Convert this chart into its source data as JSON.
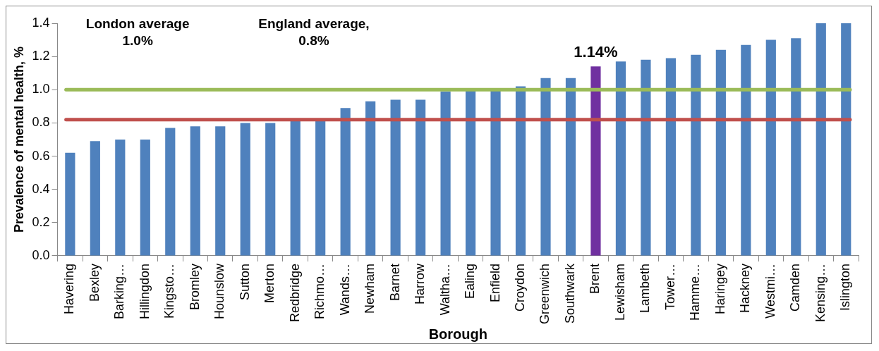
{
  "chart_data": {
    "type": "bar",
    "xlabel": "Borough",
    "ylabel": "Prevalence of mental health, %",
    "categories": [
      "Havering",
      "Bexley",
      "Barking…",
      "Hillingdon",
      "Kingsto…",
      "Bromley",
      "Hounslow",
      "Sutton",
      "Merton",
      "Redbridge",
      "Richmo…",
      "Wands…",
      "Newham",
      "Barnet",
      "Harrow",
      "Waltha…",
      "Ealing",
      "Enfield",
      "Croydon",
      "Greenwich",
      "Southwark",
      "Brent",
      "Lewisham",
      "Lambeth",
      "Tower…",
      "Hamme…",
      "Haringey",
      "Hackney",
      "Westmi…",
      "Camden",
      "Kensing…",
      "Islington"
    ],
    "values": [
      0.62,
      0.69,
      0.7,
      0.7,
      0.77,
      0.78,
      0.78,
      0.8,
      0.8,
      0.82,
      0.82,
      0.89,
      0.93,
      0.94,
      0.94,
      0.99,
      1.0,
      1.0,
      1.02,
      1.07,
      1.07,
      1.14,
      1.17,
      1.18,
      1.19,
      1.21,
      1.24,
      1.27,
      1.3,
      1.31,
      1.4,
      1.4
    ],
    "colors": [
      "#4f81bd",
      "#4f81bd",
      "#4f81bd",
      "#4f81bd",
      "#4f81bd",
      "#4f81bd",
      "#4f81bd",
      "#4f81bd",
      "#4f81bd",
      "#4f81bd",
      "#4f81bd",
      "#4f81bd",
      "#4f81bd",
      "#4f81bd",
      "#4f81bd",
      "#4f81bd",
      "#4f81bd",
      "#4f81bd",
      "#4f81bd",
      "#4f81bd",
      "#4f81bd",
      "#7030a0",
      "#4f81bd",
      "#4f81bd",
      "#4f81bd",
      "#4f81bd",
      "#4f81bd",
      "#4f81bd",
      "#4f81bd",
      "#4f81bd",
      "#4f81bd",
      "#4f81bd"
    ],
    "value_labels": [
      null,
      null,
      null,
      null,
      null,
      null,
      null,
      null,
      null,
      null,
      null,
      null,
      null,
      null,
      null,
      null,
      null,
      null,
      null,
      null,
      null,
      "1.14%",
      null,
      null,
      null,
      null,
      null,
      null,
      null,
      null,
      null,
      null
    ],
    "ylim": [
      0,
      1.4
    ],
    "yticks": [
      {
        "value": 0,
        "label": "0.0"
      },
      {
        "value": 0.2,
        "label": "0.2"
      },
      {
        "value": 0.4,
        "label": "0.4"
      },
      {
        "value": 0.6,
        "label": "0.6"
      },
      {
        "value": 0.8,
        "label": "0.8"
      },
      {
        "value": 1.0,
        "label": "1.0"
      },
      {
        "value": 1.2,
        "label": "1.2"
      },
      {
        "value": 1.4,
        "label": "1.4"
      }
    ],
    "ref_lines": [
      {
        "axis": "y",
        "value": 1.0,
        "color": "#9bbb59"
      },
      {
        "axis": "y",
        "value": 0.82,
        "color": "#c0504d"
      }
    ],
    "annotations": [
      "London average\n1.0%",
      "England average,\n0.8%"
    ],
    "grid": false,
    "legend": false
  }
}
